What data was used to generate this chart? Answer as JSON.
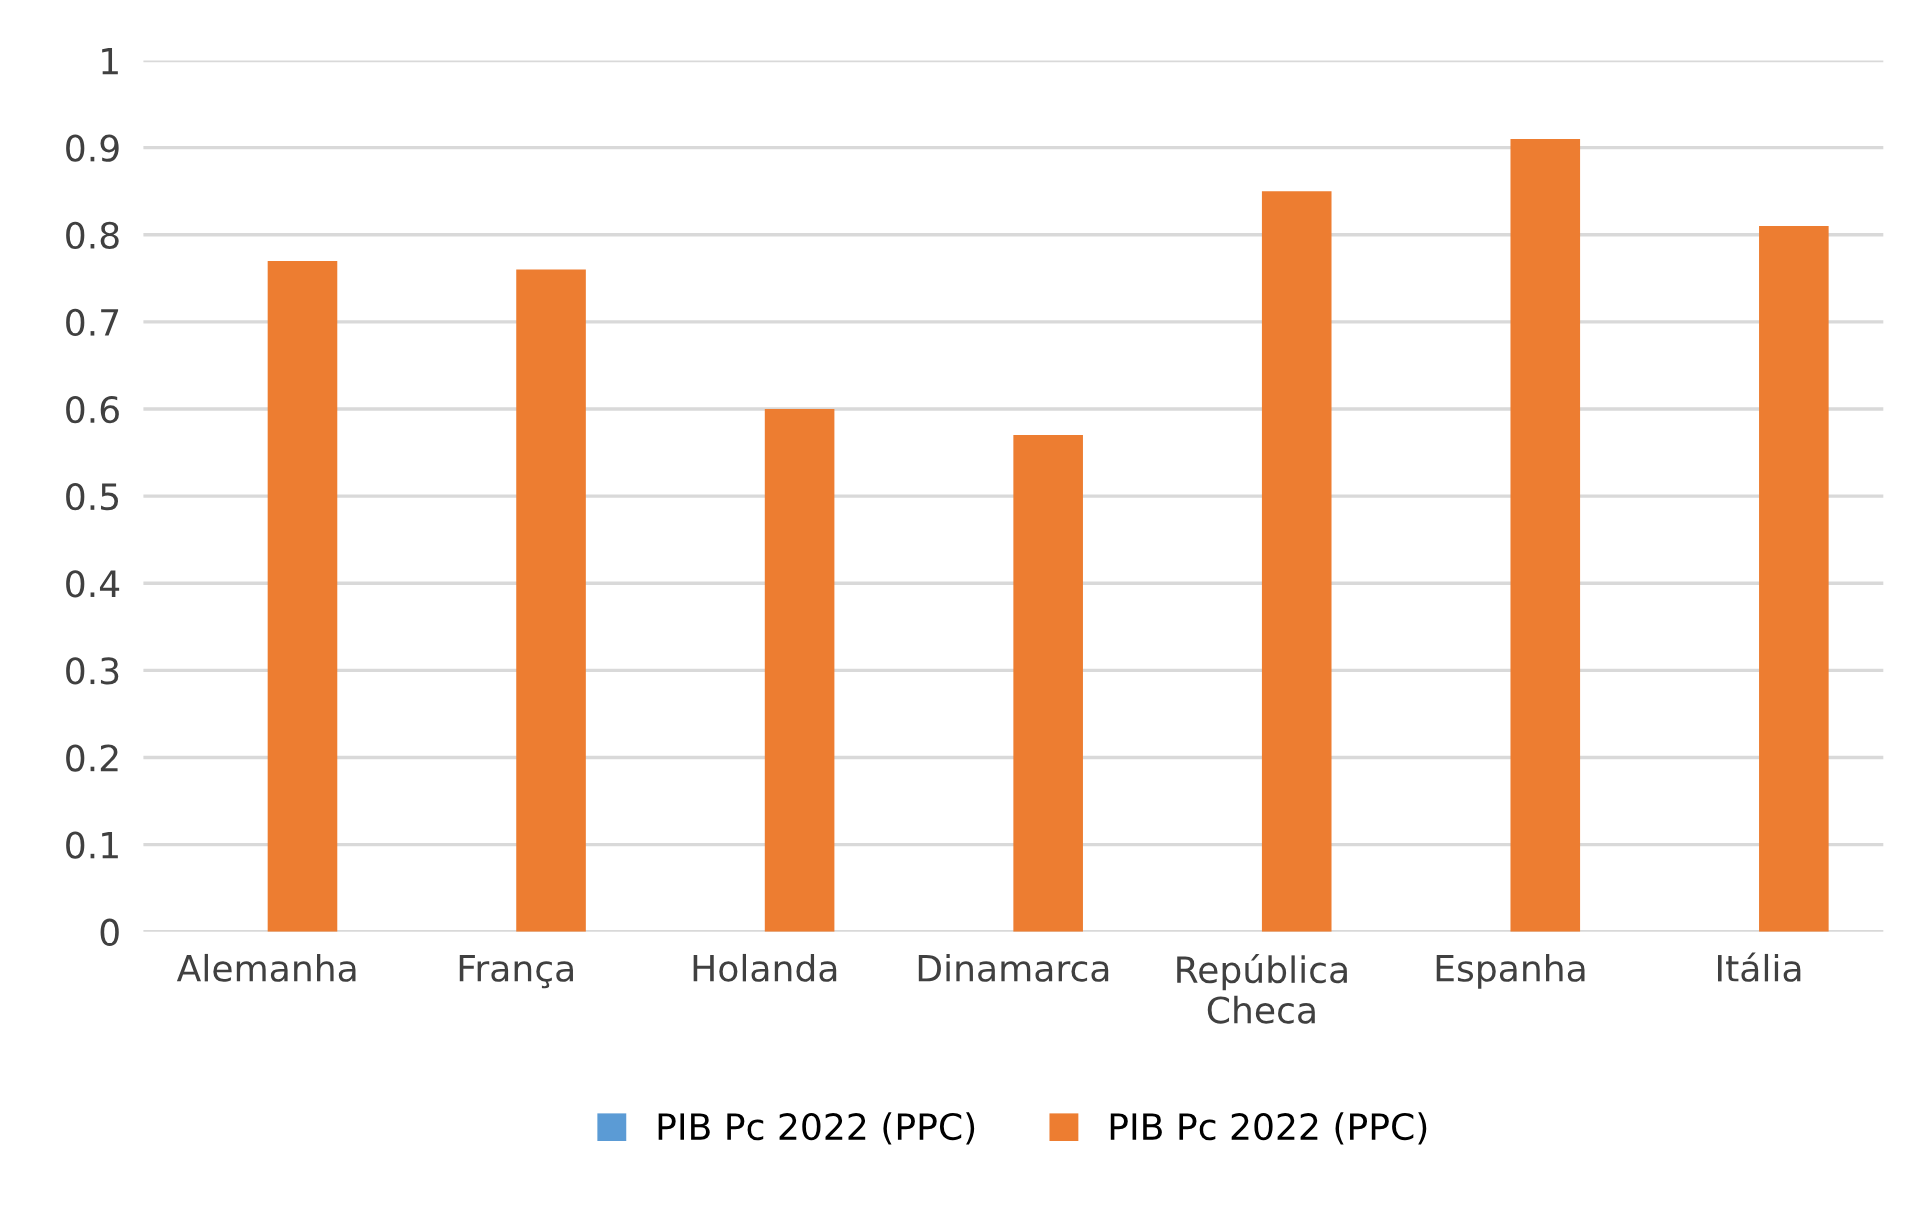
{
  "chart_data": {
    "type": "bar",
    "categories": [
      "Alemanha",
      "França",
      "Holanda",
      "Dinamarca",
      "República\nCheca",
      "Espanha",
      "Itália"
    ],
    "series": [
      {
        "name": "PIB Pc 2022 (PPC)",
        "color": "#5b9bd5",
        "values": [
          null,
          null,
          null,
          null,
          null,
          null,
          null
        ]
      },
      {
        "name": "PIB Pc 2022 (PPC)",
        "color": "#ed7d31",
        "values": [
          0.77,
          0.76,
          0.6,
          0.57,
          0.85,
          0.91,
          0.81
        ]
      }
    ],
    "ylim": [
      0,
      1
    ],
    "yticks": [
      0,
      0.1,
      0.2,
      0.3,
      0.4,
      0.5,
      0.6,
      0.7,
      0.8,
      0.9,
      1
    ],
    "grid": "y",
    "legend": "bottom"
  }
}
